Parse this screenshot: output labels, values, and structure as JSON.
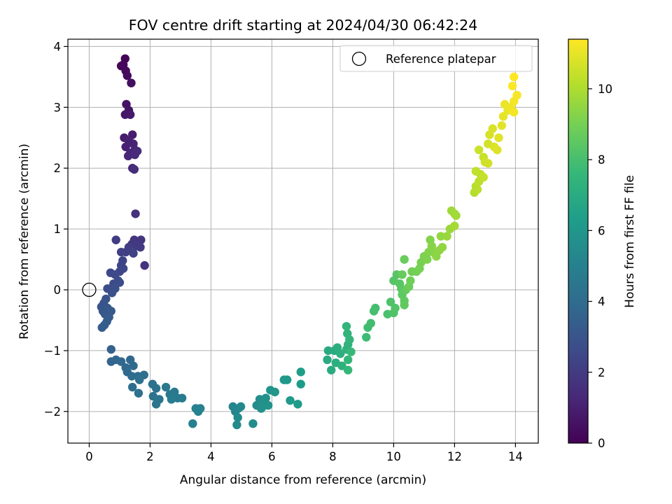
{
  "chart_data": {
    "type": "scatter",
    "title": "FOV centre drift starting at 2024/04/30 06:42:24",
    "xlabel": "Angular distance from reference (arcmin)",
    "ylabel": "Rotation from reference (arcmin)",
    "xlim": [
      -0.7,
      14.75
    ],
    "ylim": [
      -2.52,
      4.12
    ],
    "xticks": [
      0,
      2,
      4,
      6,
      8,
      10,
      12,
      14
    ],
    "yticks": [
      -2,
      -1,
      0,
      1,
      2,
      3,
      4
    ],
    "grid": true,
    "legend": {
      "placement": "top-right",
      "entries": [
        {
          "label": "Reference platepar",
          "marker": "open-circle"
        }
      ]
    },
    "reference_point": {
      "x": 0,
      "y": 0
    },
    "colorbar": {
      "label": "Hours from first FF file",
      "range": [
        0,
        11.4
      ],
      "ticks": [
        0,
        2,
        4,
        6,
        8,
        10
      ],
      "colormap": "viridis",
      "colors": [
        "#440154",
        "#482878",
        "#3e4989",
        "#31688e",
        "#26828e",
        "#1f9e89",
        "#35b779",
        "#6ece58",
        "#b5de2b",
        "#fde725"
      ]
    },
    "points": [
      [
        1.05,
        3.68,
        0.05
      ],
      [
        1.18,
        3.8,
        0.12
      ],
      [
        1.12,
        3.7,
        0.2
      ],
      [
        1.2,
        3.6,
        0.28
      ],
      [
        1.25,
        3.52,
        0.35
      ],
      [
        1.38,
        3.4,
        0.45
      ],
      [
        1.22,
        3.05,
        0.55
      ],
      [
        1.3,
        2.95,
        0.62
      ],
      [
        1.18,
        2.88,
        0.7
      ],
      [
        1.35,
        2.88,
        0.78
      ],
      [
        1.15,
        2.5,
        0.85
      ],
      [
        1.42,
        2.55,
        0.92
      ],
      [
        1.3,
        2.45,
        1.0
      ],
      [
        1.2,
        2.35,
        1.05
      ],
      [
        1.45,
        2.4,
        1.1
      ],
      [
        1.5,
        2.3,
        1.15
      ],
      [
        1.35,
        2.25,
        1.2
      ],
      [
        1.28,
        2.2,
        1.25
      ],
      [
        1.42,
        2.0,
        1.3
      ],
      [
        1.5,
        2.22,
        1.35
      ],
      [
        1.58,
        2.28,
        1.4
      ],
      [
        1.48,
        1.98,
        1.45
      ],
      [
        1.52,
        1.25,
        1.6
      ],
      [
        1.82,
        0.4,
        1.7
      ],
      [
        1.48,
        0.82,
        1.75
      ],
      [
        1.7,
        0.82,
        1.8
      ],
      [
        1.62,
        0.78,
        1.85
      ],
      [
        1.4,
        0.75,
        1.9
      ],
      [
        1.55,
        0.72,
        1.95
      ],
      [
        1.68,
        0.7,
        2.0
      ],
      [
        0.88,
        0.82,
        2.05
      ],
      [
        1.3,
        0.7,
        2.1
      ],
      [
        1.2,
        0.62,
        2.15
      ],
      [
        1.05,
        0.62,
        2.2
      ],
      [
        1.45,
        0.6,
        2.25
      ],
      [
        1.1,
        0.48,
        2.3
      ],
      [
        1.05,
        0.4,
        2.35
      ],
      [
        1.0,
        0.3,
        2.4
      ],
      [
        1.12,
        0.35,
        2.45
      ],
      [
        0.7,
        0.28,
        2.5
      ],
      [
        0.85,
        0.25,
        2.55
      ],
      [
        0.95,
        0.15,
        2.6
      ],
      [
        0.8,
        0.1,
        2.65
      ],
      [
        1.0,
        0.12,
        2.7
      ],
      [
        0.6,
        0.02,
        2.75
      ],
      [
        0.85,
        0.02,
        2.8
      ],
      [
        0.75,
        -0.05,
        2.85
      ],
      [
        0.55,
        -0.15,
        2.9
      ],
      [
        0.48,
        -0.22,
        2.95
      ],
      [
        0.4,
        -0.28,
        3.0
      ],
      [
        0.45,
        -0.35,
        3.05
      ],
      [
        0.52,
        -0.4,
        3.1
      ],
      [
        0.6,
        -0.3,
        3.15
      ],
      [
        0.72,
        -0.35,
        3.2
      ],
      [
        0.65,
        -0.45,
        3.25
      ],
      [
        0.58,
        -0.52,
        3.3
      ],
      [
        0.42,
        -0.62,
        3.35
      ],
      [
        0.5,
        -0.58,
        3.4
      ],
      [
        0.72,
        -0.98,
        3.55
      ],
      [
        0.72,
        -1.18,
        3.65
      ],
      [
        0.88,
        -1.15,
        3.7
      ],
      [
        1.05,
        -1.18,
        3.75
      ],
      [
        1.35,
        -1.15,
        3.8
      ],
      [
        1.2,
        -1.28,
        3.85
      ],
      [
        1.25,
        -1.35,
        3.9
      ],
      [
        1.45,
        -1.25,
        3.95
      ],
      [
        1.4,
        -1.42,
        4.0
      ],
      [
        1.6,
        -1.42,
        4.05
      ],
      [
        1.8,
        -1.4,
        4.1
      ],
      [
        1.42,
        -1.6,
        4.15
      ],
      [
        1.65,
        -1.48,
        4.2
      ],
      [
        1.62,
        -1.7,
        4.25
      ],
      [
        2.08,
        -1.55,
        4.3
      ],
      [
        2.2,
        -1.62,
        4.35
      ],
      [
        2.1,
        -1.75,
        4.4
      ],
      [
        2.3,
        -1.8,
        4.45
      ],
      [
        2.2,
        -1.88,
        4.5
      ],
      [
        2.52,
        -1.6,
        4.55
      ],
      [
        2.65,
        -1.72,
        4.6
      ],
      [
        2.8,
        -1.68,
        4.65
      ],
      [
        2.9,
        -1.78,
        4.7
      ],
      [
        3.05,
        -1.78,
        4.75
      ],
      [
        2.7,
        -1.8,
        4.8
      ],
      [
        3.4,
        -2.2,
        4.9
      ],
      [
        3.5,
        -1.95,
        4.95
      ],
      [
        3.65,
        -1.95,
        5.0
      ],
      [
        3.58,
        -2.0,
        5.05
      ],
      [
        4.72,
        -1.92,
        5.2
      ],
      [
        4.8,
        -2.0,
        5.25
      ],
      [
        4.9,
        -1.95,
        5.3
      ],
      [
        4.98,
        -1.92,
        5.35
      ],
      [
        4.88,
        -2.1,
        5.4
      ],
      [
        4.85,
        -2.22,
        5.45
      ],
      [
        5.38,
        -2.2,
        5.5
      ],
      [
        5.5,
        -1.9,
        5.55
      ],
      [
        5.6,
        -1.8,
        5.6
      ],
      [
        5.65,
        -1.95,
        5.65
      ],
      [
        5.72,
        -1.88,
        5.7
      ],
      [
        5.8,
        -1.78,
        5.75
      ],
      [
        5.88,
        -1.9,
        5.8
      ],
      [
        5.7,
        -1.92,
        5.85
      ],
      [
        5.95,
        -1.65,
        5.9
      ],
      [
        6.1,
        -1.68,
        5.95
      ],
      [
        6.4,
        -1.48,
        6.05
      ],
      [
        6.5,
        -1.48,
        6.1
      ],
      [
        6.6,
        -1.82,
        6.15
      ],
      [
        6.85,
        -1.88,
        6.2
      ],
      [
        6.95,
        -1.55,
        6.25
      ],
      [
        6.95,
        -1.35,
        6.3
      ],
      [
        7.85,
        -1.0,
        6.9
      ],
      [
        7.82,
        -1.15,
        6.95
      ],
      [
        7.95,
        -1.32,
        7.0
      ],
      [
        8.05,
        -1.0,
        7.05
      ],
      [
        8.15,
        -0.95,
        7.1
      ],
      [
        8.1,
        -1.2,
        7.15
      ],
      [
        8.25,
        -1.05,
        7.2
      ],
      [
        8.3,
        -1.25,
        7.25
      ],
      [
        8.45,
        -0.98,
        7.3
      ],
      [
        8.5,
        -0.9,
        7.35
      ],
      [
        8.48,
        -0.72,
        7.4
      ],
      [
        8.45,
        -0.6,
        7.45
      ],
      [
        8.55,
        -0.82,
        7.5
      ],
      [
        8.5,
        -1.15,
        7.55
      ],
      [
        8.5,
        -1.32,
        7.6
      ],
      [
        8.6,
        -1.02,
        7.65
      ],
      [
        9.1,
        -0.78,
        7.8
      ],
      [
        9.15,
        -0.62,
        7.85
      ],
      [
        9.25,
        -0.55,
        7.9
      ],
      [
        9.4,
        -0.3,
        7.95
      ],
      [
        9.35,
        -0.35,
        8.0
      ],
      [
        9.8,
        -0.4,
        8.1
      ],
      [
        9.9,
        -0.2,
        8.15
      ],
      [
        10.0,
        -0.38,
        8.2
      ],
      [
        10.05,
        -0.3,
        8.25
      ],
      [
        10.0,
        0.15,
        8.3
      ],
      [
        10.1,
        0.25,
        8.35
      ],
      [
        10.2,
        0.1,
        8.4
      ],
      [
        10.25,
        0.02,
        8.45
      ],
      [
        10.28,
        -0.08,
        8.5
      ],
      [
        10.35,
        -0.18,
        8.55
      ],
      [
        10.35,
        -0.25,
        8.6
      ],
      [
        10.4,
        0.0,
        8.65
      ],
      [
        10.28,
        0.25,
        8.7
      ],
      [
        10.35,
        0.5,
        8.75
      ],
      [
        10.5,
        0.05,
        8.8
      ],
      [
        10.55,
        0.15,
        8.85
      ],
      [
        10.6,
        0.3,
        8.9
      ],
      [
        10.75,
        0.3,
        8.95
      ],
      [
        10.85,
        0.35,
        9.0
      ],
      [
        10.9,
        0.45,
        9.05
      ],
      [
        11.0,
        0.55,
        9.1
      ],
      [
        11.1,
        0.5,
        9.15
      ],
      [
        11.15,
        0.62,
        9.2
      ],
      [
        11.2,
        0.82,
        9.25
      ],
      [
        11.25,
        0.72,
        9.3
      ],
      [
        11.35,
        0.6,
        9.35
      ],
      [
        11.4,
        0.55,
        9.4
      ],
      [
        11.5,
        0.65,
        9.45
      ],
      [
        11.6,
        0.7,
        9.5
      ],
      [
        11.55,
        0.88,
        9.55
      ],
      [
        11.75,
        0.88,
        9.6
      ],
      [
        11.85,
        1.0,
        9.65
      ],
      [
        11.9,
        1.3,
        9.7
      ],
      [
        12.0,
        1.25,
        9.75
      ],
      [
        12.05,
        1.22,
        9.8
      ],
      [
        12.0,
        1.05,
        9.85
      ],
      [
        12.65,
        1.6,
        10.1
      ],
      [
        12.7,
        1.7,
        10.15
      ],
      [
        12.75,
        1.65,
        10.2
      ],
      [
        12.8,
        1.78,
        10.25
      ],
      [
        12.85,
        1.9,
        10.3
      ],
      [
        12.7,
        1.95,
        10.35
      ],
      [
        12.95,
        1.85,
        10.4
      ],
      [
        12.95,
        2.18,
        10.45
      ],
      [
        12.8,
        2.3,
        10.5
      ],
      [
        13.0,
        2.1,
        10.55
      ],
      [
        13.1,
        2.08,
        10.6
      ],
      [
        13.1,
        2.4,
        10.65
      ],
      [
        13.15,
        2.55,
        10.7
      ],
      [
        13.25,
        2.65,
        10.75
      ],
      [
        13.3,
        2.35,
        10.8
      ],
      [
        13.4,
        2.3,
        10.85
      ],
      [
        13.45,
        2.5,
        10.9
      ],
      [
        13.55,
        2.7,
        10.95
      ],
      [
        13.6,
        2.85,
        11.0
      ],
      [
        13.75,
        2.95,
        11.05
      ],
      [
        13.65,
        3.05,
        11.1
      ],
      [
        13.85,
        3.0,
        11.15
      ],
      [
        13.95,
        2.92,
        11.2
      ],
      [
        13.95,
        3.1,
        11.25
      ],
      [
        14.05,
        3.2,
        11.3
      ],
      [
        13.9,
        3.35,
        11.35
      ],
      [
        13.95,
        3.5,
        11.4
      ]
    ]
  }
}
